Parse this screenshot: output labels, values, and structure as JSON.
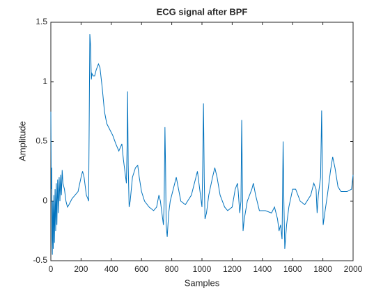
{
  "chart_data": {
    "type": "line",
    "title": "ECG signal after BPF",
    "xlabel": "Samples",
    "ylabel": "Amplitude",
    "xlim": [
      0,
      2000
    ],
    "xticks": [
      0,
      200,
      400,
      600,
      800,
      1000,
      1200,
      1400,
      1600,
      1800,
      2000
    ],
    "ylim": [
      -0.5,
      1.5
    ],
    "yticks": [
      -0.5,
      0,
      0.5,
      1,
      1.5
    ],
    "grid": false,
    "series": [
      {
        "color": "#0072bd",
        "x": [
          0,
          3,
          6,
          8,
          10,
          13,
          16,
          20,
          24,
          28,
          32,
          36,
          40,
          45,
          50,
          55,
          60,
          65,
          70,
          75,
          80,
          90,
          100,
          110,
          120,
          140,
          160,
          180,
          200,
          210,
          220,
          235,
          245,
          250,
          258,
          263,
          268,
          272,
          280,
          290,
          300,
          315,
          325,
          340,
          355,
          370,
          390,
          410,
          430,
          450,
          460,
          470,
          480,
          495,
          500,
          505,
          508,
          512,
          518,
          525,
          540,
          560,
          575,
          585,
          600,
          620,
          650,
          680,
          700,
          715,
          725,
          735,
          745,
          750,
          755,
          759,
          763,
          770,
          780,
          790,
          810,
          830,
          845,
          860,
          890,
          930,
          960,
          970,
          985,
          995,
          1000,
          1005,
          1010,
          1015,
          1020,
          1030,
          1045,
          1070,
          1085,
          1100,
          1120,
          1150,
          1170,
          1200,
          1220,
          1235,
          1240,
          1250,
          1258,
          1263,
          1268,
          1272,
          1280,
          1300,
          1330,
          1340,
          1355,
          1380,
          1420,
          1460,
          1480,
          1490,
          1500,
          1510,
          1520,
          1530,
          1537,
          1542,
          1548,
          1560,
          1575,
          1600,
          1620,
          1650,
          1680,
          1720,
          1740,
          1755,
          1762,
          1770,
          1785,
          1792,
          1797,
          1802,
          1815,
          1830,
          1850,
          1865,
          1880,
          1900,
          1920,
          1960,
          1990,
          2000
        ],
        "values": [
          0.75,
          0.1,
          0.28,
          -0.3,
          -0.45,
          0.0,
          -0.4,
          0.05,
          -0.35,
          0.1,
          -0.25,
          0.15,
          -0.2,
          0.18,
          -0.1,
          0.2,
          0.0,
          0.22,
          0.05,
          0.26,
          0.15,
          0.1,
          0.0,
          -0.05,
          -0.03,
          0.02,
          0.05,
          0.08,
          0.2,
          0.25,
          0.2,
          0.05,
          0.02,
          0.0,
          1.4,
          1.3,
          1.02,
          1.07,
          1.05,
          1.05,
          1.1,
          1.15,
          1.12,
          0.95,
          0.75,
          0.65,
          0.6,
          0.55,
          0.48,
          0.42,
          0.45,
          0.48,
          0.35,
          0.2,
          0.15,
          0.5,
          0.92,
          0.3,
          -0.05,
          0.0,
          0.2,
          0.28,
          0.3,
          0.2,
          0.08,
          0.0,
          -0.05,
          -0.08,
          -0.05,
          0.05,
          0.0,
          -0.1,
          -0.2,
          0.0,
          0.62,
          0.3,
          -0.2,
          -0.3,
          -0.1,
          0.0,
          0.1,
          0.2,
          0.1,
          0.0,
          -0.03,
          0.05,
          0.2,
          0.25,
          0.1,
          0.0,
          -0.05,
          0.3,
          0.82,
          0.2,
          -0.15,
          -0.1,
          0.05,
          0.2,
          0.28,
          0.2,
          0.05,
          -0.05,
          -0.08,
          -0.05,
          0.1,
          0.15,
          0.08,
          -0.1,
          0.0,
          0.68,
          0.1,
          -0.25,
          -0.15,
          0.0,
          0.1,
          0.15,
          0.05,
          -0.08,
          -0.08,
          -0.1,
          -0.05,
          -0.1,
          -0.15,
          -0.25,
          -0.2,
          -0.32,
          0.5,
          0.0,
          -0.4,
          -0.2,
          -0.05,
          0.1,
          0.1,
          0.0,
          -0.03,
          0.05,
          0.15,
          0.1,
          -0.1,
          0.05,
          0.2,
          0.76,
          0.2,
          -0.2,
          -0.08,
          0.05,
          0.25,
          0.37,
          0.28,
          0.12,
          0.08,
          0.08,
          0.1,
          0.22
        ]
      }
    ]
  }
}
